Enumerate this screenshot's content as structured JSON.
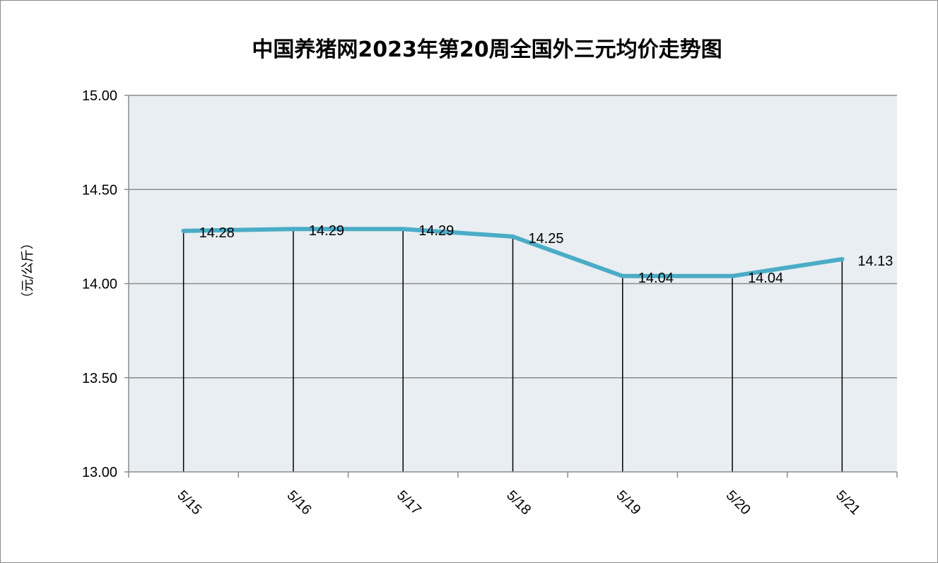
{
  "chart_data": {
    "type": "line",
    "title": "中国养猪网2023年第20周全国外三元均价走势图",
    "ylabel": "（元/公斤）",
    "xlabel": "",
    "categories": [
      "5/15",
      "5/16",
      "5/17",
      "5/18",
      "5/19",
      "5/20",
      "5/21"
    ],
    "values": [
      14.28,
      14.29,
      14.29,
      14.25,
      14.04,
      14.04,
      14.13
    ],
    "data_labels": [
      "14.28",
      "14.29",
      "14.29",
      "14.25",
      "14.04",
      "14.04",
      "14.13"
    ],
    "ylim": [
      13.0,
      15.0
    ],
    "yticks": [
      "13.00",
      "13.50",
      "14.00",
      "14.50",
      "15.00"
    ],
    "ytick_values": [
      13.0,
      13.5,
      14.0,
      14.5,
      15.0
    ],
    "grid": true,
    "drop_lines": true,
    "legend": "none",
    "colors": {
      "line": "#4BACC6",
      "plot_background": "#E8EEF2",
      "gridline": "#8C8C8C",
      "drop_line": "#000000",
      "frame": "#8C8C8C"
    }
  }
}
